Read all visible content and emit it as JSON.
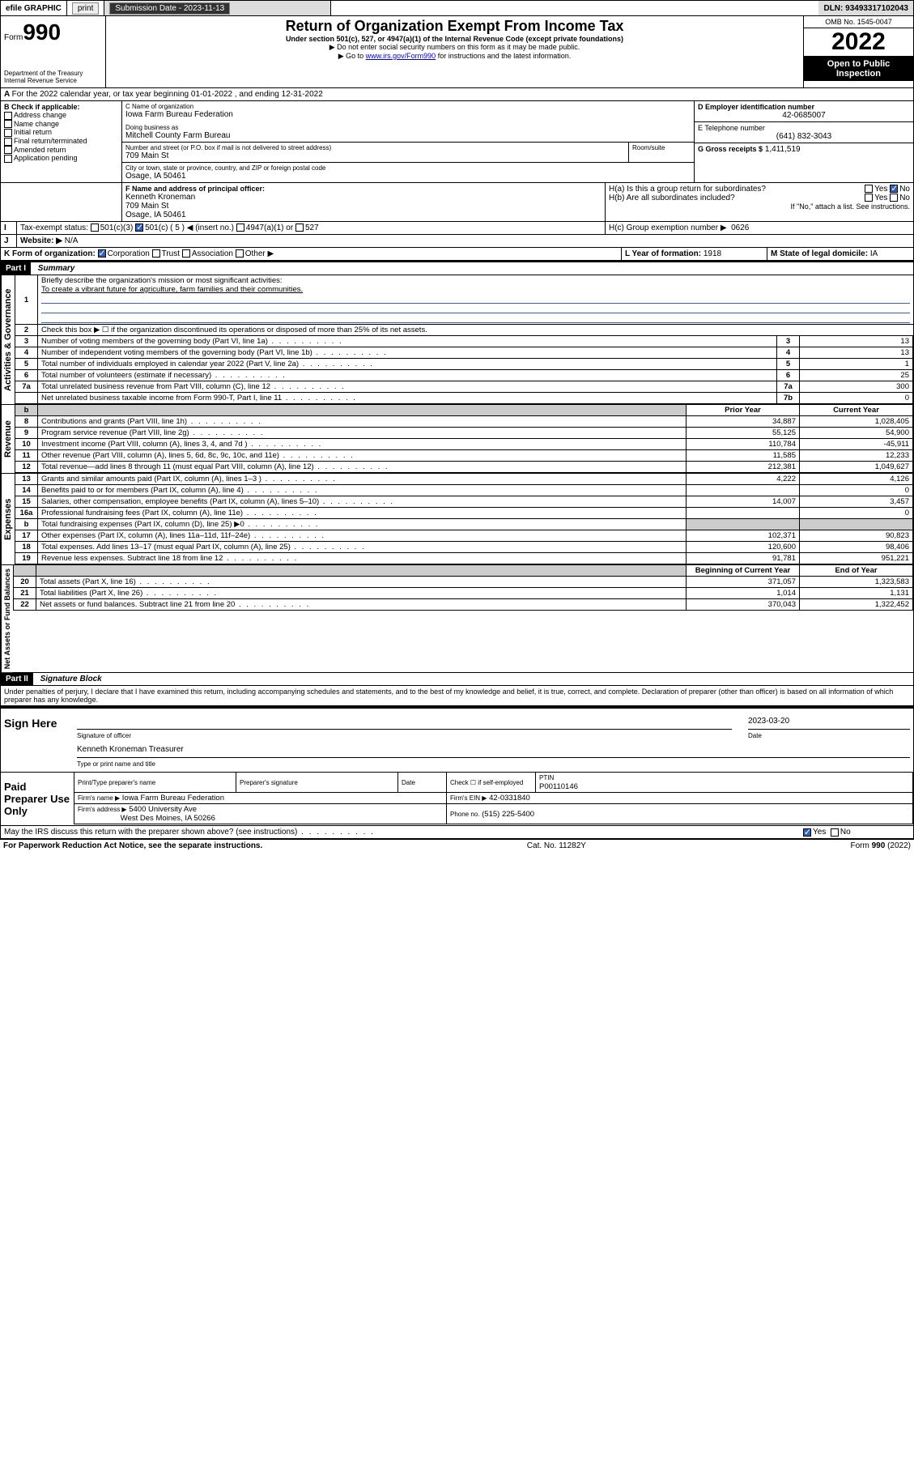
{
  "topbar": {
    "efile": "efile GRAPHIC",
    "print": "print",
    "sub_label": "Submission Date - 2023-11-13",
    "dln": "DLN: 93493317102043"
  },
  "header": {
    "form_word": "Form",
    "form_num": "990",
    "dept": "Department of the Treasury\nInternal Revenue Service",
    "title": "Return of Organization Exempt From Income Tax",
    "subtitle": "Under section 501(c), 527, or 4947(a)(1) of the Internal Revenue Code (except private foundations)",
    "instr1": "▶ Do not enter social security numbers on this form as it may be made public.",
    "instr2_pre": "▶ Go to ",
    "instr2_link": "www.irs.gov/Form990",
    "instr2_post": " for instructions and the latest information.",
    "omb": "OMB No. 1545-0047",
    "year": "2022",
    "open": "Open to Public Inspection"
  },
  "A": {
    "text": "For the 2022 calendar year, or tax year beginning 01-01-2022   , and ending 12-31-2022"
  },
  "B": {
    "label": "B Check if applicable:",
    "opts": [
      "Address change",
      "Name change",
      "Initial return",
      "Final return/terminated",
      "Amended return",
      "Application pending"
    ]
  },
  "C": {
    "name_lbl": "C Name of organization",
    "name": "Iowa Farm Bureau Federation",
    "dba_lbl": "Doing business as",
    "dba": "Mitchell County Farm Bureau",
    "street_lbl": "Number and street (or P.O. box if mail is not delivered to street address)",
    "room_lbl": "Room/suite",
    "street": "709 Main St",
    "city_lbl": "City or town, state or province, country, and ZIP or foreign postal code",
    "city": "Osage, IA  50461"
  },
  "D": {
    "lbl": "D Employer identification number",
    "val": "42-0685007"
  },
  "E": {
    "lbl": "E Telephone number",
    "val": "(641) 832-3043"
  },
  "G": {
    "lbl": "G Gross receipts $",
    "val": "1,411,519"
  },
  "F": {
    "lbl": "F  Name and address of principal officer:",
    "name": "Kenneth Kroneman",
    "addr1": "709 Main St",
    "addr2": "Osage, IA  50461"
  },
  "H": {
    "a": "H(a)  Is this a group return for subordinates?",
    "a_yes": "Yes",
    "a_no": "No",
    "b": "H(b)  Are all subordinates included?",
    "b_yes": "Yes",
    "b_no": "No",
    "b_note": "If \"No,\" attach a list. See instructions.",
    "c": "H(c)  Group exemption number ▶",
    "c_val": "0626"
  },
  "I": {
    "lbl": "Tax-exempt status:",
    "o1": "501(c)(3)",
    "o2_pre": "501(c) ( 5 ) ◀ (insert no.)",
    "o3": "4947(a)(1) or",
    "o4": "527"
  },
  "J": {
    "lbl": "Website: ▶",
    "val": "N/A"
  },
  "K": {
    "lbl": "K Form of organization:",
    "o1": "Corporation",
    "o2": "Trust",
    "o3": "Association",
    "o4": "Other ▶"
  },
  "L": {
    "lbl": "L Year of formation:",
    "val": "1918"
  },
  "M": {
    "lbl": "M State of legal domicile:",
    "val": "IA"
  },
  "part1": {
    "hdr": "Part I",
    "title": "Summary",
    "q1": "Briefly describe the organization's mission or most significant activities:",
    "a1": "To create a vibrant future for agriculture, farm families and their communities.",
    "q2": "Check this box ▶ ☐  if the organization discontinued its operations or disposed of more than 25% of its net assets.",
    "rows_gov": [
      {
        "n": "3",
        "t": "Number of voting members of the governing body (Part VI, line 1a)",
        "b": "3",
        "v": "13"
      },
      {
        "n": "4",
        "t": "Number of independent voting members of the governing body (Part VI, line 1b)",
        "b": "4",
        "v": "13"
      },
      {
        "n": "5",
        "t": "Total number of individuals employed in calendar year 2022 (Part V, line 2a)",
        "b": "5",
        "v": "1"
      },
      {
        "n": "6",
        "t": "Total number of volunteers (estimate if necessary)",
        "b": "6",
        "v": "25"
      },
      {
        "n": "7a",
        "t": "Total unrelated business revenue from Part VIII, column (C), line 12",
        "b": "7a",
        "v": "300"
      },
      {
        "n": "",
        "t": "Net unrelated business taxable income from Form 990-T, Part I, line 11",
        "b": "7b",
        "v": "0"
      }
    ],
    "col_prior": "Prior Year",
    "col_current": "Current Year",
    "rows_rev": [
      {
        "n": "8",
        "t": "Contributions and grants (Part VIII, line 1h)",
        "p": "34,887",
        "c": "1,028,405"
      },
      {
        "n": "9",
        "t": "Program service revenue (Part VIII, line 2g)",
        "p": "55,125",
        "c": "54,900"
      },
      {
        "n": "10",
        "t": "Investment income (Part VIII, column (A), lines 3, 4, and 7d )",
        "p": "110,784",
        "c": "-45,911"
      },
      {
        "n": "11",
        "t": "Other revenue (Part VIII, column (A), lines 5, 6d, 8c, 9c, 10c, and 11e)",
        "p": "11,585",
        "c": "12,233"
      },
      {
        "n": "12",
        "t": "Total revenue—add lines 8 through 11 (must equal Part VIII, column (A), line 12)",
        "p": "212,381",
        "c": "1,049,627"
      }
    ],
    "rows_exp": [
      {
        "n": "13",
        "t": "Grants and similar amounts paid (Part IX, column (A), lines 1–3 )",
        "p": "4,222",
        "c": "4,126"
      },
      {
        "n": "14",
        "t": "Benefits paid to or for members (Part IX, column (A), line 4)",
        "p": "",
        "c": "0"
      },
      {
        "n": "15",
        "t": "Salaries, other compensation, employee benefits (Part IX, column (A), lines 5–10)",
        "p": "14,007",
        "c": "3,457"
      },
      {
        "n": "16a",
        "t": "Professional fundraising fees (Part IX, column (A), line 11e)",
        "p": "",
        "c": "0"
      },
      {
        "n": "b",
        "t": "Total fundraising expenses (Part IX, column (D), line 25) ▶0",
        "p": "",
        "c": "",
        "shade": true
      },
      {
        "n": "17",
        "t": "Other expenses (Part IX, column (A), lines 11a–11d, 11f–24e)",
        "p": "102,371",
        "c": "90,823"
      },
      {
        "n": "18",
        "t": "Total expenses. Add lines 13–17 (must equal Part IX, column (A), line 25)",
        "p": "120,600",
        "c": "98,406"
      },
      {
        "n": "19",
        "t": "Revenue less expenses. Subtract line 18 from line 12",
        "p": "91,781",
        "c": "951,221"
      }
    ],
    "col_begin": "Beginning of Current Year",
    "col_end": "End of Year",
    "rows_net": [
      {
        "n": "20",
        "t": "Total assets (Part X, line 16)",
        "p": "371,057",
        "c": "1,323,583"
      },
      {
        "n": "21",
        "t": "Total liabilities (Part X, line 26)",
        "p": "1,014",
        "c": "1,131"
      },
      {
        "n": "22",
        "t": "Net assets or fund balances. Subtract line 21 from line 20",
        "p": "370,043",
        "c": "1,322,452"
      }
    ],
    "vtab_gov": "Activities & Governance",
    "vtab_rev": "Revenue",
    "vtab_exp": "Expenses",
    "vtab_net": "Net Assets or Fund Balances"
  },
  "part2": {
    "hdr": "Part II",
    "title": "Signature Block",
    "decl": "Under penalties of perjury, I declare that I have examined this return, including accompanying schedules and statements, and to the best of my knowledge and belief, it is true, correct, and complete. Declaration of preparer (other than officer) is based on all information of which preparer has any knowledge.",
    "sign_here": "Sign Here",
    "sig_officer": "Signature of officer",
    "sig_date": "Date",
    "date_val": "2023-03-20",
    "officer_name": "Kenneth Kroneman  Treasurer",
    "type_name": "Type or print name and title",
    "paid": "Paid Preparer Use Only",
    "prep_name_lbl": "Print/Type preparer's name",
    "prep_sig_lbl": "Preparer's signature",
    "date_lbl": "Date",
    "check_if": "Check ☐ if self-employed",
    "ptin_lbl": "PTIN",
    "ptin": "P00110146",
    "firm_name_lbl": "Firm's name    ▶",
    "firm_name": "Iowa Farm Bureau Federation",
    "firm_ein_lbl": "Firm's EIN ▶",
    "firm_ein": "42-0331840",
    "firm_addr_lbl": "Firm's address ▶",
    "firm_addr1": "5400 University Ave",
    "firm_addr2": "West Des Moines, IA  50266",
    "phone_lbl": "Phone no.",
    "phone": "(515) 225-5400",
    "discuss": "May the IRS discuss this return with the preparer shown above? (see instructions)",
    "yes": "Yes",
    "no": "No"
  },
  "footer": {
    "left": "For Paperwork Reduction Act Notice, see the separate instructions.",
    "mid": "Cat. No. 11282Y",
    "right": "Form 990 (2022)"
  }
}
